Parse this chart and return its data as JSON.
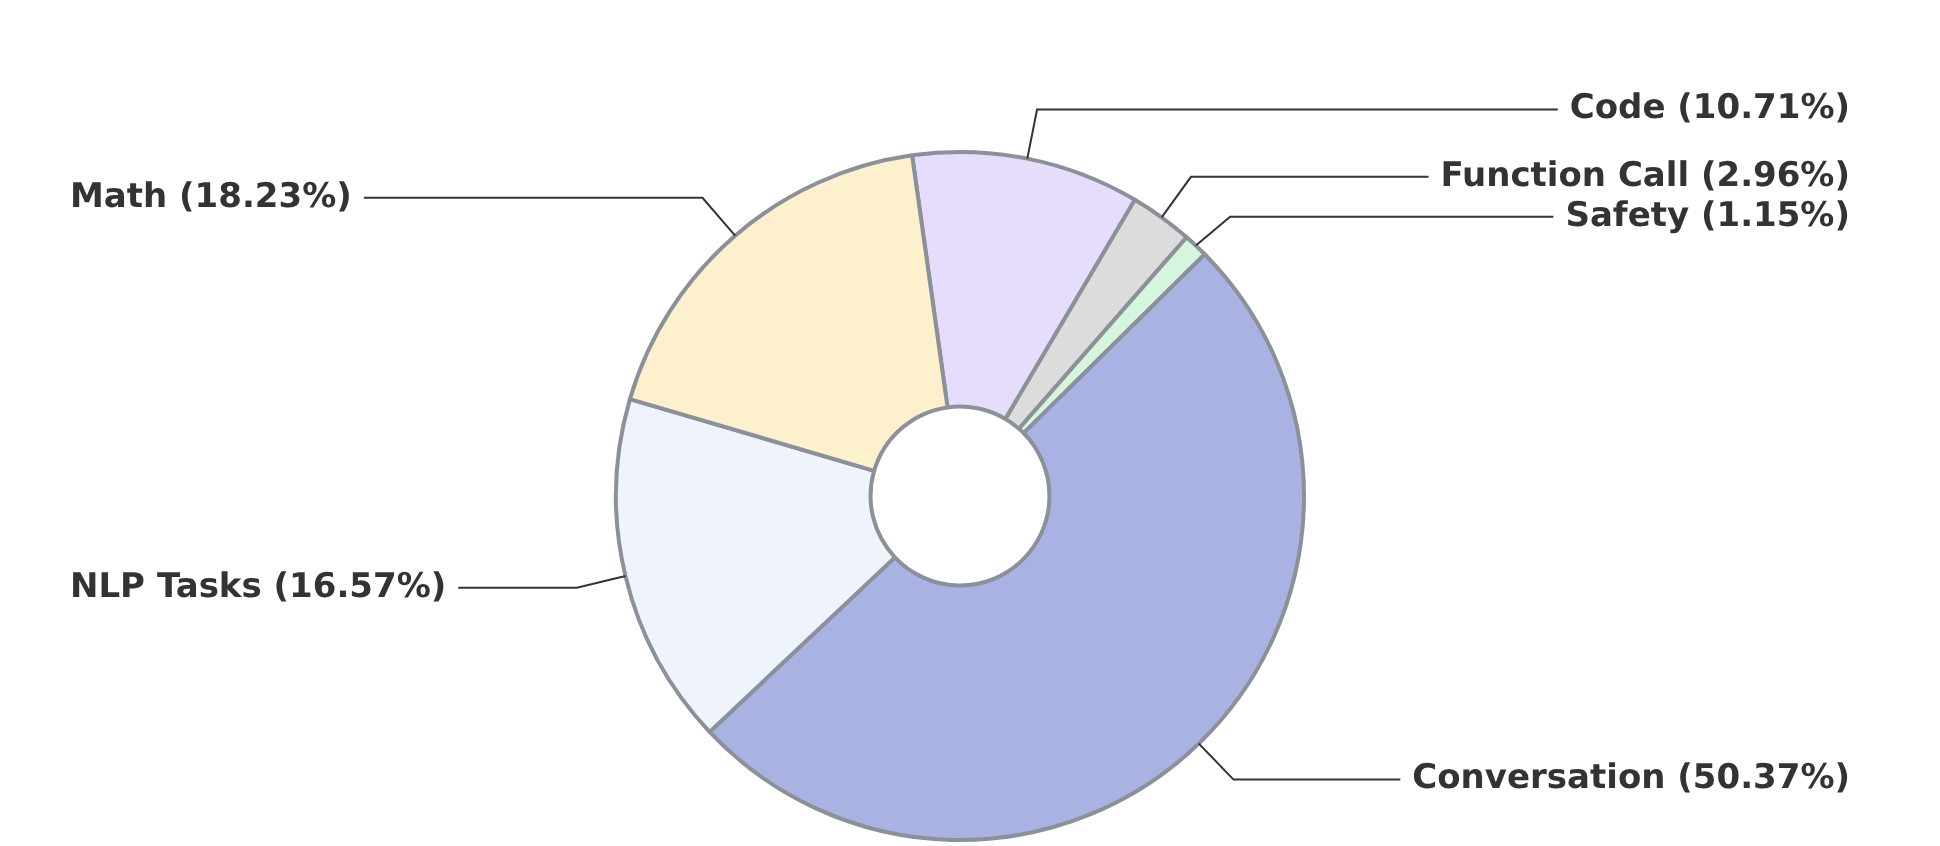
{
  "chart_data": {
    "type": "donut",
    "categories": [
      "Code (10.71%)",
      "Function Call (2.96%)",
      "Safety (1.15%)",
      "Conversation (50.37%)",
      "NLP Tasks (16.57%)",
      "Math (18.23%)"
    ],
    "values": [
      10.71,
      2.96,
      1.15,
      50.37,
      16.57,
      18.23
    ],
    "colors": [
      "#e6ddfd",
      "#dcdcdc",
      "#d6f5de",
      "#a8b3e3",
      "#eef3fc",
      "#fdf0cd"
    ],
    "legend": false
  }
}
